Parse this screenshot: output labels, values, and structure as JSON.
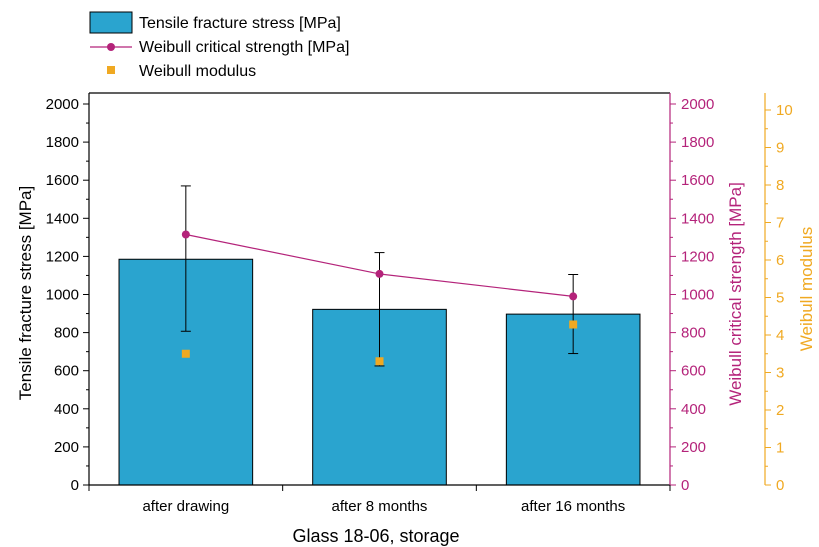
{
  "chart_data": {
    "type": "bar",
    "categories": [
      "after drawing",
      "after 8 months",
      "after 16 months"
    ],
    "xlabel": "Glass 18-06, storage",
    "ylabel": "Tensile fracture stress [MPa]",
    "y2label": "Weibull critical strength [MPa]",
    "y3label": "Weibull modulus",
    "ylim": [
      0,
      2000
    ],
    "y2lim": [
      0,
      2000
    ],
    "y3lim": [
      0,
      10
    ],
    "yticks": [
      "0",
      "200",
      "400",
      "600",
      "800",
      "1000",
      "1200",
      "1400",
      "1600",
      "1800",
      "2000"
    ],
    "y2ticks": [
      "0",
      "200",
      "400",
      "600",
      "800",
      "1000",
      "1200",
      "1400",
      "1600",
      "1800",
      "2000"
    ],
    "y3ticks": [
      "0",
      "1",
      "2",
      "3",
      "4",
      "5",
      "6",
      "7",
      "8",
      "9",
      "10"
    ],
    "grid": false,
    "legend_position": "top-left",
    "series": [
      {
        "name": "Tensile fracture stress [MPa]",
        "kind": "bar",
        "axis": "left",
        "color": "#2aa4cf",
        "values": [
          1185,
          922,
          897
        ],
        "err_low": [
          807,
          625,
          690
        ],
        "err_high": [
          1570,
          1220,
          1105
        ]
      },
      {
        "name": "Weibull critical strength [MPa]",
        "kind": "line",
        "axis": "right",
        "color": "#b4237a",
        "values": [
          1315,
          1108,
          990
        ]
      },
      {
        "name": "Weibull modulus",
        "kind": "scatter",
        "axis": "far-right",
        "color": "#f0a922",
        "values": [
          3.5,
          3.3,
          4.28
        ]
      }
    ]
  }
}
